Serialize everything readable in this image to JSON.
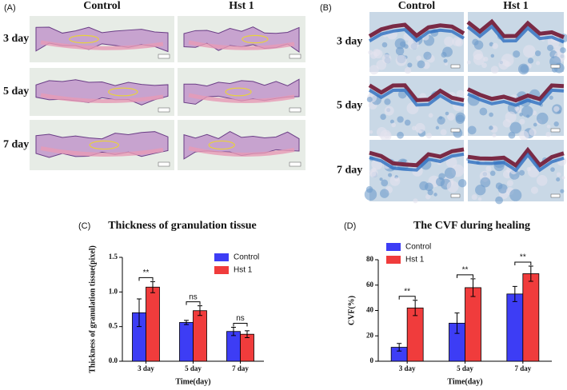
{
  "panels": [
    {
      "label": "(A)",
      "columns": [
        "Control",
        "Hst 1"
      ],
      "rows": [
        "3 day",
        "5 day",
        "7 day"
      ]
    },
    {
      "label": "(B)",
      "columns": [
        "Control",
        "Hst 1"
      ],
      "rows": [
        "3 day",
        "5 day",
        "7 day"
      ]
    }
  ],
  "chart_data": [
    {
      "type": "bar",
      "panel_label": "(C)",
      "title": "Thickness of granulation tissue",
      "y_label": "Thickness of granulation tissue(pixel)",
      "x_label": "Time(day)",
      "categories": [
        "3 day",
        "5 day",
        "7 day"
      ],
      "series": [
        {
          "name": "Control",
          "color": "#3d3df5",
          "values": [
            0.7,
            0.56,
            0.43
          ],
          "errors": [
            0.2,
            0.03,
            0.06
          ]
        },
        {
          "name": "Hst 1",
          "color": "#f03c3c",
          "values": [
            1.07,
            0.73,
            0.39
          ],
          "errors": [
            0.08,
            0.07,
            0.05
          ]
        }
      ],
      "annotations": [
        "**",
        "ns",
        "ns"
      ],
      "ylim": [
        0,
        1.5
      ],
      "yticks": [
        {
          "value": 0,
          "label": "0.0"
        },
        0.5,
        {
          "value": 1,
          "label": "1.0"
        },
        1.5
      ],
      "legend": "upper right"
    },
    {
      "type": "bar",
      "panel_label": "(D)",
      "title": "The CVF during healing",
      "y_label": "CVF(%)",
      "x_label": "Time(day)",
      "categories": [
        "3 day",
        "5 day",
        "7 day"
      ],
      "series": [
        {
          "name": "Control",
          "color": "#3d3df5",
          "values": [
            11,
            30,
            53
          ],
          "errors": [
            3,
            8,
            6
          ]
        },
        {
          "name": "Hst 1",
          "color": "#f03c3c",
          "values": [
            42,
            58,
            69
          ],
          "errors": [
            6,
            7,
            6
          ]
        }
      ],
      "annotations": [
        "**",
        "**",
        "**"
      ],
      "ylim": [
        0,
        80
      ],
      "yticks": [
        0,
        20,
        40,
        60,
        80
      ],
      "legend": "upper left"
    }
  ]
}
